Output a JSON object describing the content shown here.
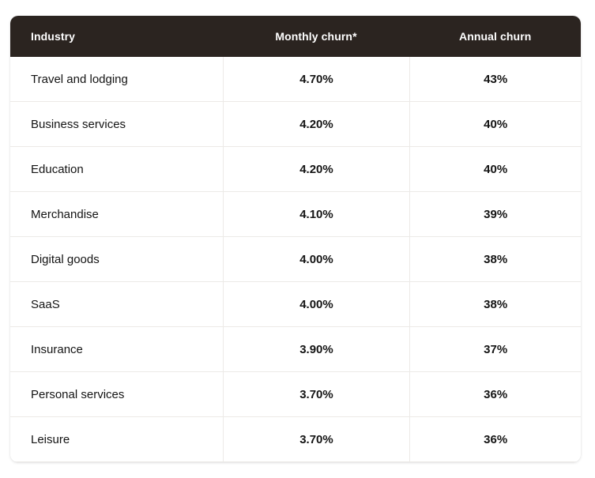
{
  "colors": {
    "header_bg": "#2b2420",
    "header_text": "#ffffff",
    "body_text": "#141414",
    "border": "#eceae7",
    "page_bg": "#ffffff"
  },
  "chart_data": {
    "type": "table",
    "title": "",
    "columns": [
      "Industry",
      "Monthly churn*",
      "Annual churn"
    ],
    "rows": [
      [
        "Travel and lodging",
        "4.70%",
        "43%"
      ],
      [
        "Business services",
        "4.20%",
        "40%"
      ],
      [
        "Education",
        "4.20%",
        "40%"
      ],
      [
        "Merchandise",
        "4.10%",
        "39%"
      ],
      [
        "Digital goods",
        "4.00%",
        "38%"
      ],
      [
        "SaaS",
        "4.00%",
        "38%"
      ],
      [
        "Insurance",
        "3.90%",
        "37%"
      ],
      [
        "Personal services",
        "3.70%",
        "36%"
      ],
      [
        "Leisure",
        "3.70%",
        "36%"
      ]
    ],
    "monthly_churn_percent": [
      4.7,
      4.2,
      4.2,
      4.1,
      4.0,
      4.0,
      3.9,
      3.7,
      3.7
    ],
    "annual_churn_percent": [
      43,
      40,
      40,
      39,
      38,
      38,
      37,
      36,
      36
    ]
  }
}
